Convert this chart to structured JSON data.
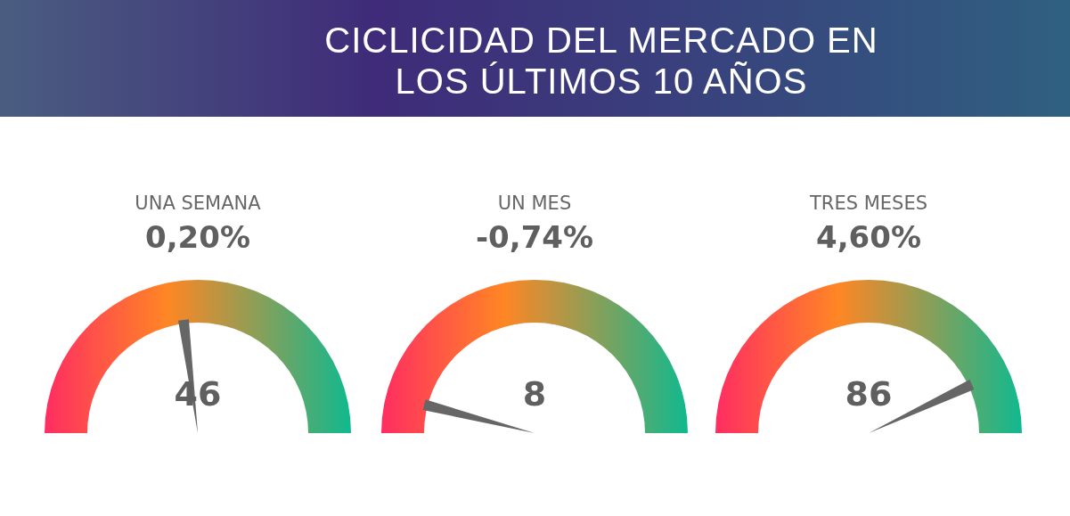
{
  "chart_data": [
    {
      "type": "other",
      "title": "CICLICIDAD DEL MERCADO EN LOS ÚLTIMOS 10 AÑOS"
    },
    {
      "type": "other",
      "title": "UNA SEMANA",
      "subtitle": "0,20%",
      "values": [
        46
      ],
      "data_labels": true
    },
    {
      "type": "other",
      "title": "UN MES",
      "subtitle": "-0,74%",
      "values": [
        8
      ],
      "data_labels": true
    },
    {
      "type": "other",
      "title": "TRES MESES",
      "subtitle": "4,60%",
      "values": [
        86
      ],
      "data_labels": true
    }
  ]
}
